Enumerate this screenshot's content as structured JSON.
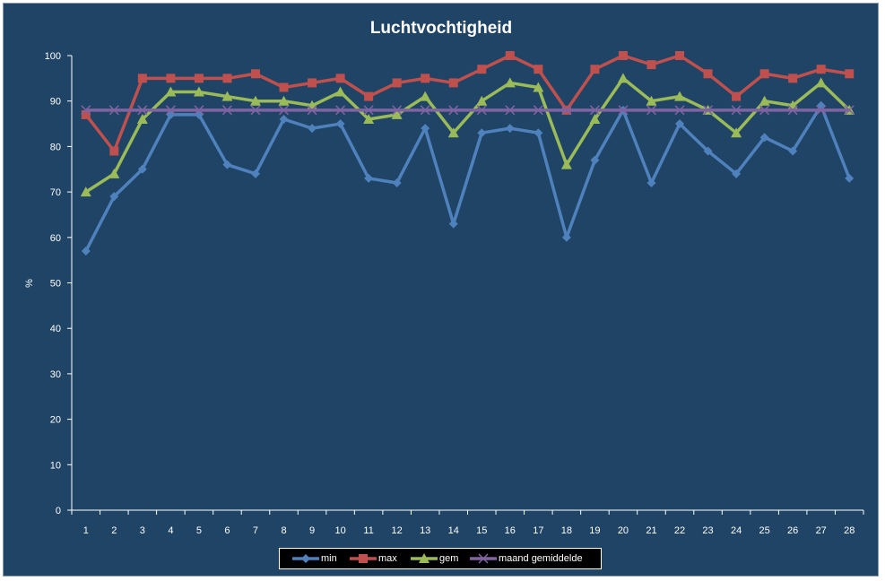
{
  "colors": {
    "background": "#1f4466",
    "series": [
      "#4f81bd",
      "#c0504d",
      "#9bbb59",
      "#8064a2"
    ]
  },
  "chart_data": {
    "type": "line",
    "title": "Luchtvochtigheid",
    "xlabel": "",
    "ylabel": "%",
    "ylim": [
      0,
      100
    ],
    "yticks": [
      "0",
      "10",
      "20",
      "30",
      "40",
      "50",
      "60",
      "70",
      "80",
      "90",
      "100"
    ],
    "grid": false,
    "legend_position": "bottom",
    "categories": [
      "1",
      "2",
      "3",
      "4",
      "5",
      "6",
      "7",
      "8",
      "9",
      "10",
      "11",
      "12",
      "13",
      "14",
      "15",
      "16",
      "17",
      "18",
      "19",
      "20",
      "21",
      "22",
      "23",
      "24",
      "25",
      "26",
      "27",
      "28"
    ],
    "series": [
      {
        "name": "min",
        "marker": "diamond",
        "values": [
          57,
          69,
          75,
          87,
          87,
          76,
          74,
          86,
          84,
          85,
          73,
          72,
          84,
          63,
          83,
          84,
          83,
          60,
          77,
          88,
          72,
          85,
          79,
          74,
          82,
          79,
          89,
          73
        ]
      },
      {
        "name": "max",
        "marker": "square",
        "values": [
          87,
          79,
          95,
          95,
          95,
          95,
          96,
          93,
          94,
          95,
          91,
          94,
          95,
          94,
          97,
          100,
          97,
          88,
          97,
          100,
          98,
          100,
          96,
          91,
          96,
          95,
          97,
          96
        ]
      },
      {
        "name": "gem",
        "marker": "triangle",
        "values": [
          70,
          74,
          86,
          92,
          92,
          91,
          90,
          90,
          89,
          92,
          86,
          87,
          91,
          83,
          90,
          94,
          93,
          76,
          86,
          95,
          90,
          91,
          88,
          83,
          90,
          89,
          94,
          88
        ]
      },
      {
        "name": "maand gemiddelde",
        "marker": "x",
        "values": [
          88,
          88,
          88,
          88,
          88,
          88,
          88,
          88,
          88,
          88,
          88,
          88,
          88,
          88,
          88,
          88,
          88,
          88,
          88,
          88,
          88,
          88,
          88,
          88,
          88,
          88,
          88,
          88
        ]
      }
    ]
  }
}
